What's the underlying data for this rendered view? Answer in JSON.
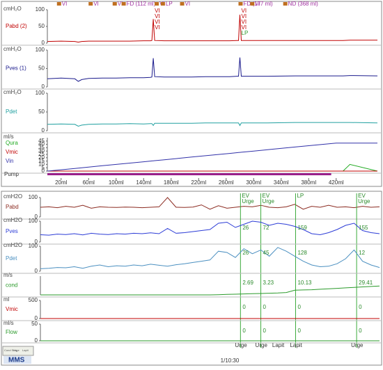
{
  "chart_data": [
    {
      "type": "line",
      "unit": "cmH₂O",
      "xlim": [
        0,
        480
      ],
      "x": [
        0,
        20,
        40,
        45,
        50,
        60,
        80,
        100,
        120,
        140,
        150,
        152,
        154,
        156,
        170,
        190,
        210,
        230,
        250,
        265,
        276,
        278,
        280,
        282,
        300,
        320,
        360,
        400,
        420,
        430,
        440,
        480
      ],
      "ylim": [
        0,
        100
      ],
      "yticks": [
        0,
        50,
        100
      ],
      "series": [
        {
          "name": "Pabd (2)",
          "color": "#c00000",
          "values": [
            5,
            6,
            5,
            3,
            5,
            6,
            6,
            6,
            6,
            7,
            7,
            8,
            72,
            8,
            7,
            7,
            7,
            7,
            7,
            7,
            8,
            8,
            85,
            8,
            8,
            8,
            8,
            8,
            8,
            8,
            9,
            9
          ]
        }
      ],
      "events": [
        {
          "x": 17,
          "label": "VI"
        },
        {
          "x": 63,
          "label": "VI"
        },
        {
          "x": 98,
          "label": "VI"
        },
        {
          "x": 111,
          "label": "FD (112 ml)"
        },
        {
          "x": 159,
          "label": "VI"
        },
        {
          "x": 168,
          "label": "LP"
        },
        {
          "x": 196,
          "label": "VI"
        },
        {
          "x": 281,
          "label": "FD (177 ml)"
        },
        {
          "x": 298,
          "label": "VI"
        },
        {
          "x": 346,
          "label": "ND (368 ml)"
        }
      ],
      "notes": [
        {
          "x": 154,
          "lines": [
            "VI",
            "VI",
            "VI",
            "VI"
          ]
        },
        {
          "x": 280,
          "lines": [
            "VI",
            "VI",
            "VI",
            "VI",
            "LP"
          ]
        }
      ]
    },
    {
      "type": "line",
      "unit": "cmH₂O",
      "xlim": [
        0,
        480
      ],
      "x": [
        0,
        20,
        40,
        45,
        50,
        60,
        80,
        100,
        120,
        140,
        150,
        152,
        154,
        156,
        170,
        190,
        210,
        230,
        250,
        265,
        276,
        278,
        280,
        282,
        300,
        320,
        360,
        400,
        420,
        430,
        440,
        480
      ],
      "ylim": [
        0,
        100
      ],
      "yticks": [
        0,
        50,
        100
      ],
      "series": [
        {
          "name": "Pves (1)",
          "color": "#1a1a8c",
          "values": [
            22,
            24,
            22,
            15,
            20,
            23,
            24,
            24,
            25,
            25,
            26,
            27,
            78,
            28,
            27,
            27,
            27,
            28,
            28,
            28,
            29,
            29,
            80,
            29,
            29,
            29,
            30,
            30,
            30,
            30,
            31,
            30
          ]
        }
      ]
    },
    {
      "type": "line",
      "unit": "cmH₂O",
      "xlim": [
        0,
        480
      ],
      "x": [
        0,
        20,
        40,
        45,
        50,
        60,
        80,
        100,
        120,
        140,
        150,
        152,
        154,
        156,
        170,
        190,
        210,
        230,
        250,
        265,
        276,
        278,
        280,
        282,
        300,
        320,
        360,
        400,
        420,
        430,
        440,
        480
      ],
      "ylim": [
        0,
        100
      ],
      "yticks": [
        0,
        50,
        100
      ],
      "series": [
        {
          "name": "Pdet",
          "color": "#20a0a0",
          "values": [
            17,
            18,
            17,
            12,
            15,
            17,
            18,
            18,
            19,
            18,
            19,
            19,
            14,
            20,
            20,
            20,
            20,
            21,
            21,
            21,
            21,
            21,
            14,
            21,
            21,
            21,
            22,
            22,
            22,
            22,
            22,
            21
          ]
        }
      ]
    },
    {
      "type": "line",
      "unit": "ml/s",
      "xlim": [
        0,
        480
      ],
      "x": [
        0,
        20,
        40,
        45,
        50,
        60,
        80,
        100,
        120,
        140,
        150,
        152,
        154,
        156,
        170,
        190,
        210,
        230,
        250,
        265,
        276,
        278,
        280,
        282,
        300,
        320,
        360,
        400,
        420,
        430,
        440,
        480
      ],
      "ylim": [
        0,
        50
      ],
      "yticks": [
        0,
        5,
        10,
        15,
        20,
        25,
        30,
        35,
        40,
        45
      ],
      "series": [
        {
          "name": "Qura",
          "color": "#22aa22",
          "values": [
            0,
            0,
            0,
            0,
            0,
            0,
            0,
            0,
            0,
            0,
            0,
            0,
            0,
            0,
            0,
            0,
            0,
            0,
            0,
            0,
            0,
            0,
            0,
            0,
            0,
            0,
            0,
            0,
            0,
            0,
            10,
            0
          ]
        },
        {
          "name": "Vmic",
          "color": "#c00000",
          "values": [
            0,
            0,
            0,
            0,
            0,
            0,
            0,
            0,
            0,
            0,
            0,
            0,
            0,
            0,
            0,
            0,
            0,
            0,
            0,
            0,
            0,
            0,
            0,
            0,
            0,
            0,
            0,
            0,
            0,
            0,
            0,
            0
          ]
        },
        {
          "name": "Vin",
          "color": "#3030a8",
          "values": [
            0,
            2,
            4,
            4.5,
            5,
            6,
            8,
            10,
            12,
            14,
            15,
            15.2,
            15.4,
            15.6,
            17,
            19,
            21,
            23,
            25,
            26.5,
            27.6,
            27.8,
            28,
            28.2,
            30,
            32,
            36,
            40,
            42,
            42,
            42,
            42
          ]
        }
      ]
    },
    {
      "type": "axis",
      "label": "Pump",
      "xlim": [
        0,
        480
      ],
      "xticks": [
        {
          "value": 20,
          "label": "20ml"
        },
        {
          "value": 60,
          "label": "60ml"
        },
        {
          "value": 100,
          "label": "100ml"
        },
        {
          "value": 140,
          "label": "140ml"
        },
        {
          "value": 180,
          "label": "180ml"
        },
        {
          "value": 220,
          "label": "220ml"
        },
        {
          "value": 260,
          "label": "260ml"
        },
        {
          "value": 300,
          "label": "300ml"
        },
        {
          "value": 340,
          "label": "340ml"
        },
        {
          "value": 380,
          "label": "380ml"
        },
        {
          "value": 420,
          "label": "420ml"
        }
      ]
    },
    {
      "type": "line",
      "unit": "cmH2O",
      "xlim": [
        0,
        40
      ],
      "x": [
        0,
        1,
        2,
        3,
        4,
        5,
        6,
        7,
        8,
        9,
        10,
        11,
        12,
        13,
        14,
        15,
        16,
        17,
        18,
        19,
        20,
        21,
        22,
        23,
        24,
        25,
        26,
        27,
        28,
        29,
        30,
        31,
        32,
        33,
        34,
        35,
        36,
        37,
        38,
        39,
        40
      ],
      "ylim": [
        0,
        100
      ],
      "yticks": [
        0,
        100
      ],
      "series": [
        {
          "name": "Pabd",
          "color": "#8b2a20",
          "values": [
            50,
            52,
            48,
            55,
            50,
            60,
            45,
            52,
            50,
            49,
            51,
            50,
            48,
            50,
            52,
            100,
            50,
            49,
            51,
            62,
            40,
            58,
            45,
            50,
            55,
            52,
            60,
            50,
            48,
            52,
            65,
            40,
            55,
            50,
            60,
            50,
            52,
            48,
            55,
            50,
            52
          ]
        }
      ],
      "events": [
        {
          "x": 23.6,
          "lines": [
            "EV",
            "Urge"
          ]
        },
        {
          "x": 26,
          "lines": [
            "EV",
            "Urge"
          ]
        },
        {
          "x": 30.1,
          "lines": [
            "LP"
          ]
        },
        {
          "x": 37.3,
          "lines": [
            "EV",
            "Urge"
          ]
        }
      ]
    },
    {
      "type": "line",
      "unit": "cmH2O",
      "xlim": [
        0,
        40
      ],
      "x": [
        0,
        1,
        2,
        3,
        4,
        5,
        6,
        7,
        8,
        9,
        10,
        11,
        12,
        13,
        14,
        15,
        16,
        17,
        18,
        19,
        20,
        21,
        22,
        23,
        24,
        25,
        26,
        27,
        28,
        29,
        30,
        31,
        32,
        33,
        34,
        35,
        36,
        37,
        38,
        39,
        40
      ],
      "ylim": [
        0,
        100
      ],
      "yticks": [
        0,
        100
      ],
      "series": [
        {
          "name": "Pves",
          "color": "#2b3bd6",
          "values": [
            35,
            33,
            38,
            36,
            40,
            34,
            42,
            38,
            36,
            40,
            38,
            42,
            40,
            44,
            40,
            65,
            42,
            45,
            50,
            55,
            60,
            90,
            95,
            70,
            85,
            100,
            95,
            80,
            90,
            85,
            75,
            60,
            40,
            35,
            45,
            60,
            80,
            90,
            55,
            45,
            40
          ]
        }
      ],
      "annotations": [
        {
          "x": 23.6,
          "label": "26"
        },
        {
          "x": 26,
          "label": "72"
        },
        {
          "x": 30.1,
          "label": "159"
        },
        {
          "x": 37.3,
          "label": "155"
        }
      ]
    },
    {
      "type": "line",
      "unit": "cmH2O",
      "xlim": [
        0,
        40
      ],
      "x": [
        0,
        1,
        2,
        3,
        4,
        5,
        6,
        7,
        8,
        9,
        10,
        11,
        12,
        13,
        14,
        15,
        16,
        17,
        18,
        19,
        20,
        21,
        22,
        23,
        24,
        25,
        26,
        27,
        28,
        29,
        30,
        31,
        32,
        33,
        34,
        35,
        36,
        37,
        38,
        39,
        40
      ],
      "ylim": [
        0,
        100
      ],
      "yticks": [
        0,
        100
      ],
      "series": [
        {
          "name": "Pdet",
          "color": "#4a8fc0",
          "values": [
            10,
            12,
            15,
            14,
            18,
            12,
            20,
            25,
            18,
            22,
            20,
            25,
            22,
            28,
            24,
            20,
            26,
            30,
            35,
            40,
            45,
            80,
            75,
            55,
            90,
            70,
            85,
            60,
            95,
            80,
            60,
            40,
            25,
            18,
            20,
            30,
            50,
            85,
            40,
            25,
            15
          ]
        }
      ],
      "annotations": [
        {
          "x": 23.6,
          "label": "26"
        },
        {
          "x": 26,
          "label": "45"
        },
        {
          "x": 30.1,
          "label": "128"
        },
        {
          "x": 37.3,
          "label": "12"
        }
      ]
    },
    {
      "type": "line",
      "unit": "m/s",
      "xlim": [
        0,
        40
      ],
      "x": [
        0,
        1,
        2,
        3,
        4,
        5,
        6,
        7,
        8,
        9,
        10,
        11,
        12,
        13,
        14,
        15,
        16,
        17,
        18,
        19,
        20,
        21,
        22,
        23,
        24,
        25,
        26,
        27,
        28,
        29,
        30,
        31,
        32,
        33,
        34,
        35,
        36,
        37,
        38,
        39,
        40
      ],
      "ylim": [
        0,
        40
      ],
      "series": [
        {
          "name": "cond",
          "color": "#2a9a2a",
          "values": [
            0,
            0,
            0,
            0,
            0,
            0,
            0,
            0,
            0,
            0,
            0,
            0,
            0,
            0,
            0,
            0,
            0,
            0,
            0,
            0,
            0,
            0.5,
            1,
            1.5,
            2,
            2.5,
            3,
            3.5,
            4,
            5,
            10,
            10.5,
            11,
            12,
            13,
            14,
            15,
            16,
            17,
            18,
            19
          ]
        }
      ],
      "annotations": [
        {
          "x": 23.6,
          "label": "2.69"
        },
        {
          "x": 26,
          "label": "3.23"
        },
        {
          "x": 30.1,
          "label": "10.13"
        },
        {
          "x": 37.3,
          "label": "29.41"
        }
      ]
    },
    {
      "type": "line",
      "unit": "ml",
      "xlim": [
        0,
        40
      ],
      "x": [
        0,
        1,
        2,
        3,
        4,
        5,
        6,
        7,
        8,
        9,
        10,
        11,
        12,
        13,
        14,
        15,
        16,
        17,
        18,
        19,
        20,
        21,
        22,
        23,
        24,
        25,
        26,
        27,
        28,
        29,
        30,
        31,
        32,
        33,
        34,
        35,
        36,
        37,
        38,
        39,
        40
      ],
      "ylim": [
        0,
        500
      ],
      "yticks": [
        0,
        500
      ],
      "series": [
        {
          "name": "Vmic",
          "color": "#c00000",
          "values": [
            0,
            0,
            0,
            0,
            0,
            0,
            0,
            0,
            0,
            0,
            0,
            0,
            0,
            0,
            0,
            0,
            0,
            0,
            0,
            0,
            0,
            0,
            0,
            0,
            0,
            0,
            0,
            0,
            0,
            0,
            0,
            0,
            0,
            0,
            0,
            0,
            0,
            0,
            0,
            0,
            0
          ]
        }
      ],
      "annotations": [
        {
          "x": 23.6,
          "label": "0"
        },
        {
          "x": 26,
          "label": "0"
        },
        {
          "x": 30.1,
          "label": "0"
        },
        {
          "x": 37.3,
          "label": "0"
        }
      ]
    },
    {
      "type": "line",
      "unit": "ml/s",
      "xlim": [
        0,
        40
      ],
      "x": [
        0,
        1,
        2,
        3,
        4,
        5,
        6,
        7,
        8,
        9,
        10,
        11,
        12,
        13,
        14,
        15,
        16,
        17,
        18,
        19,
        20,
        21,
        22,
        23,
        24,
        25,
        26,
        27,
        28,
        29,
        30,
        31,
        32,
        33,
        34,
        35,
        36,
        37,
        38,
        39,
        40
      ],
      "ylim": [
        0,
        50
      ],
      "yticks": [
        0,
        50
      ],
      "series": [
        {
          "name": "Flow",
          "color": "#2a9a2a",
          "values": [
            0,
            0,
            0,
            0,
            0,
            0,
            0,
            0,
            0,
            0,
            0,
            0,
            0,
            0,
            0,
            0,
            0,
            0,
            0,
            0,
            0,
            0,
            0,
            0,
            0,
            0,
            0,
            0,
            0,
            0,
            0,
            0,
            0,
            0,
            0,
            0,
            0,
            0,
            0,
            0,
            0
          ]
        }
      ],
      "annotations": [
        {
          "x": 23.6,
          "label": "0"
        },
        {
          "x": 26,
          "label": "0"
        },
        {
          "x": 30.1,
          "label": "0"
        },
        {
          "x": 37.3,
          "label": "0"
        }
      ]
    }
  ],
  "footer": {
    "xlim": [
      0,
      40
    ],
    "markers": [
      {
        "x": 23.6,
        "label": "Urge"
      },
      {
        "x": 26,
        "label": "Urge"
      },
      {
        "x": 28,
        "label": "Lapit"
      },
      {
        "x": 30.1,
        "label": "Lapit"
      },
      {
        "x": 37.3,
        "label": "Urge"
      }
    ],
    "time": "1/10:30",
    "logo": "MMS",
    "legend": [
      "Cond Seq",
      "Urge",
      "Lapit"
    ]
  }
}
